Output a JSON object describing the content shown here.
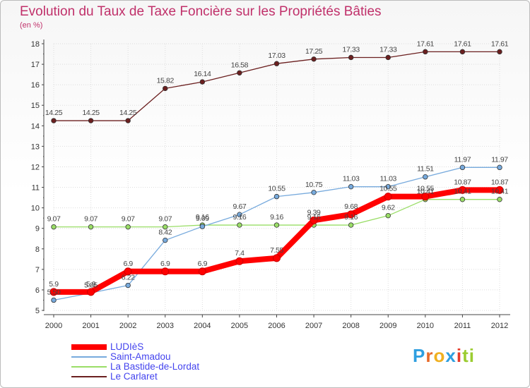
{
  "chart_data": {
    "type": "line",
    "title": "Evolution du Taux de Taxe Foncière sur les Propriétés Bâties",
    "ylabel": "(en %)",
    "xlabel": "",
    "ylim": [
      5,
      18
    ],
    "yticks": [
      "5",
      "6",
      "7",
      "8",
      "9",
      "10",
      "11",
      "12",
      "13",
      "14",
      "15",
      "16",
      "17",
      "18"
    ],
    "categories": [
      "2000",
      "2001",
      "2002",
      "2003",
      "2004",
      "2005",
      "2006",
      "2007",
      "2008",
      "2009",
      "2010",
      "2011",
      "2012"
    ],
    "series": [
      {
        "name": "Le Carlaret",
        "color": "#6b1f1f",
        "values": [
          14.25,
          14.25,
          14.25,
          15.82,
          16.14,
          16.58,
          17.03,
          17.25,
          17.33,
          17.33,
          17.61,
          17.61,
          17.61
        ],
        "labels": [
          "14.25",
          "14.25",
          "14.25",
          "15.82",
          "16.14",
          "16.58",
          "17.03",
          "17.25",
          "17.33",
          "17.33",
          "17.61",
          "17.61",
          "17.61"
        ]
      },
      {
        "name": "La Bastide-de-Lordat",
        "color": "#99dd66",
        "values": [
          9.07,
          9.07,
          9.07,
          9.07,
          9.16,
          9.16,
          9.16,
          9.16,
          9.16,
          9.62,
          10.41,
          10.41,
          10.41
        ],
        "labels": [
          "9.07",
          "9.07",
          "9.07",
          "9.07",
          "9.16",
          "9.16",
          "9.16",
          "9.16",
          "9.16",
          "9.62",
          "10.41",
          "10.41",
          "10.41"
        ]
      },
      {
        "name": "Saint-Amadou",
        "color": "#77aadd",
        "values": [
          5.5,
          5.85,
          6.22,
          8.42,
          9.09,
          9.67,
          10.55,
          10.75,
          11.03,
          11.03,
          11.51,
          11.97,
          11.97
        ],
        "labels": [
          "5.50",
          "5.85",
          "6.22",
          "8.42",
          "9.09",
          "9.67",
          "10.55",
          "10.75",
          "11.03",
          "11.03",
          "11.51",
          "11.97",
          "11.97"
        ]
      },
      {
        "name": "LUDIèS",
        "color": "#ff0000",
        "values": [
          5.9,
          5.9,
          6.9,
          6.9,
          6.9,
          7.4,
          7.55,
          9.39,
          9.68,
          10.55,
          10.55,
          10.87,
          10.87
        ],
        "labels": [
          "5.9",
          "5.9",
          "6.9",
          "6.9",
          "6.9",
          "7.4",
          "7.55",
          "9.39",
          "9.68",
          "10.55",
          "10.55",
          "10.87",
          "10.87"
        ]
      }
    ],
    "legend": [
      "LUDIèS",
      "Saint-Amadou",
      "La Bastide-de-Lordat",
      "Le Carlaret"
    ]
  },
  "logo": [
    "P",
    "r",
    "o",
    "x",
    "i",
    "ti"
  ]
}
